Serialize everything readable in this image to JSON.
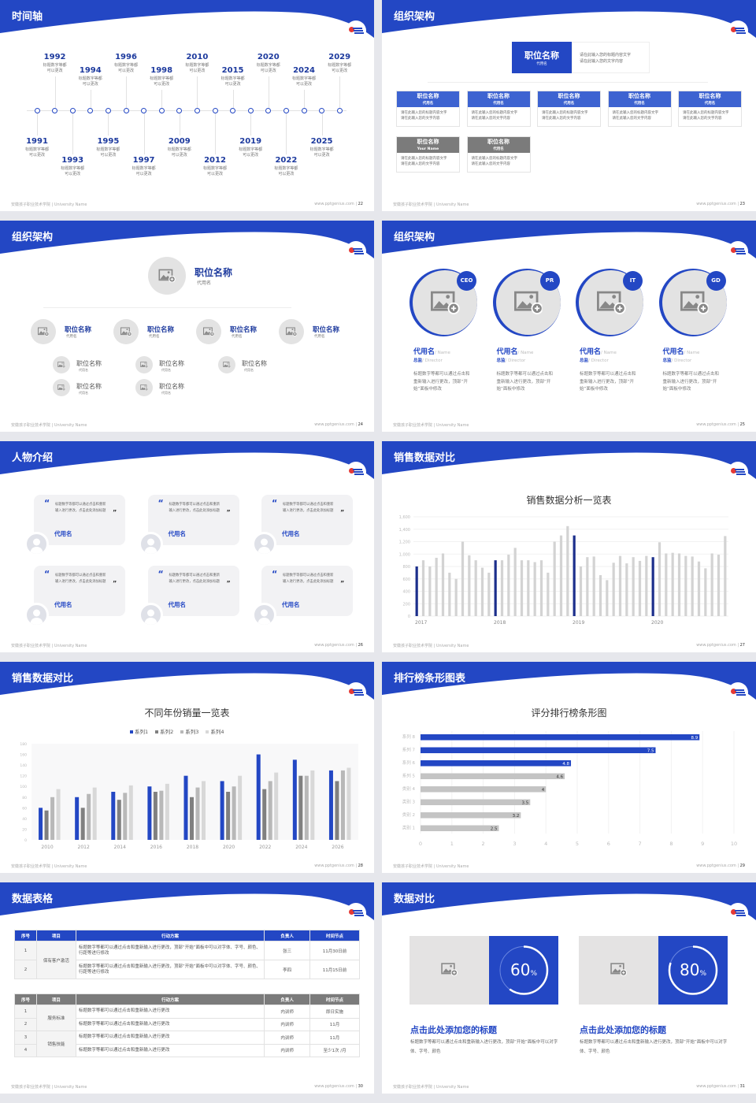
{
  "footer": {
    "school": "安徽孩子职业技术学院 | University Name",
    "site": "www.pptgenius.com"
  },
  "colors": {
    "accent": "#2347c4",
    "gray_header": "#7b7b7b",
    "bar_gray": "#cfcfcf"
  },
  "slides": [
    {
      "title": "时间轴",
      "page": "22",
      "timeline": [
        {
          "year": "1991",
          "text": [
            "标题数字等都",
            "可以更改"
          ]
        },
        {
          "year": "1992",
          "text": [
            "标题数字等都",
            "可以更改"
          ]
        },
        {
          "year": "1993",
          "text": [
            "标题数字等都",
            "可以更改"
          ]
        },
        {
          "year": "1994",
          "text": [
            "标题数字等都",
            "可以更改"
          ]
        },
        {
          "year": "1995",
          "text": [
            "标题数字等都",
            "可以更改"
          ]
        },
        {
          "year": "1996",
          "text": [
            "标题数字等都",
            "可以更改"
          ]
        },
        {
          "year": "1997",
          "text": [
            "标题数字等都",
            "可以更改"
          ]
        },
        {
          "year": "1998",
          "text": [
            "标题数字等都",
            "可以更改"
          ]
        },
        {
          "year": "2009",
          "text": [
            "标题数字等都",
            "可以更改"
          ]
        },
        {
          "year": "2010",
          "text": [
            "标题数字等都",
            "可以更改"
          ]
        },
        {
          "year": "2012",
          "text": [
            "标题数字等都",
            "可以更改"
          ]
        },
        {
          "year": "2015",
          "text": [
            "标题数字等都",
            "可以更改"
          ]
        },
        {
          "year": "2019",
          "text": [
            "标题数字等都",
            "可以更改"
          ]
        },
        {
          "year": "2020",
          "text": [
            "标题数字等都",
            "可以更改"
          ]
        },
        {
          "year": "2022",
          "text": [
            "标题数字等都",
            "可以更改"
          ]
        },
        {
          "year": "2024",
          "text": [
            "标题数字等都",
            "可以更改"
          ]
        },
        {
          "year": "2025",
          "text": [
            "标题数字等都",
            "可以更改"
          ]
        },
        {
          "year": "2029",
          "text": [
            "标题数字等都",
            "可以更改"
          ]
        }
      ]
    },
    {
      "title": "组织架构",
      "page": "23",
      "top": {
        "title": "职位名称",
        "sub": "代用名",
        "desc": [
          "请在此输入您的标题内容文字",
          "请在此输入您的文字内容"
        ]
      },
      "cards": [
        {
          "title": "职位名称",
          "sub": "代用名",
          "desc": [
            "请在此输入您的标题内容文字",
            "请在此输入您的文字内容"
          ],
          "color": "blue"
        },
        {
          "title": "职位名称",
          "sub": "代用名",
          "desc": [
            "请在此输入您的标题内容文字",
            "请在此输入您的文字内容"
          ],
          "color": "blue"
        },
        {
          "title": "职位名称",
          "sub": "代用名",
          "desc": [
            "请在此输入您的标题内容文字",
            "请在此输入您的文字内容"
          ],
          "color": "blue"
        },
        {
          "title": "职位名称",
          "sub": "代用名",
          "desc": [
            "请在此输入您的标题内容文字",
            "请在此输入您的文字内容"
          ],
          "color": "blue"
        },
        {
          "title": "职位名称",
          "sub": "代用名",
          "desc": [
            "请在此输入您的标题内容文字",
            "请在此输入您的文字内容"
          ],
          "color": "blue"
        },
        {
          "title": "职位名称",
          "sub": "Your Name",
          "desc": [
            "请在此输入您的标题内容文字",
            "请在此输入您的文字内容"
          ],
          "color": "gray"
        },
        {
          "title": "职位名称",
          "sub": "代用名",
          "desc": [
            "请在此输入您的标题内容文字",
            "请在此输入您的文字内容"
          ],
          "color": "gray"
        }
      ]
    },
    {
      "title": "组织架构",
      "page": "24",
      "top": {
        "title": "职位名称",
        "sub": "代用名"
      },
      "mid": [
        {
          "title": "职位名称",
          "sub": "代用名",
          "children": [
            {
              "title": "职位名称",
              "sub": "代用名"
            },
            {
              "title": "职位名称",
              "sub": "代用名"
            }
          ]
        },
        {
          "title": "职位名称",
          "sub": "代用名",
          "children": [
            {
              "title": "职位名称",
              "sub": "代用名"
            },
            {
              "title": "职位名称",
              "sub": "代用名"
            }
          ]
        },
        {
          "title": "职位名称",
          "sub": "代用名",
          "children": [
            {
              "title": "职位名称",
              "sub": "代用名"
            }
          ]
        },
        {
          "title": "职位名称",
          "sub": "代用名",
          "children": []
        }
      ]
    },
    {
      "title": "组织架构",
      "page": "25",
      "people": [
        {
          "badge": "CEO",
          "name": "代用名",
          "name_en": "/ Name",
          "role": "总监",
          "role_en": "/ Director",
          "desc": "标题数字等都可以通过点击和重新输入进行更改，顶部“开始”面板中修改"
        },
        {
          "badge": "PR",
          "name": "代用名",
          "name_en": "/ Name",
          "role": "总监",
          "role_en": "/ Director",
          "desc": "标题数字等都可以通过点击和重新输入进行更改，顶部“开始”面板中修改"
        },
        {
          "badge": "IT",
          "name": "代用名",
          "name_en": "/ Name",
          "role": "总监",
          "role_en": "/ Director",
          "desc": "标题数字等都可以通过点击和重新输入进行更改，顶部“开始”面板中修改"
        },
        {
          "badge": "GD",
          "name": "代用名",
          "name_en": "/ Name",
          "role": "总监",
          "role_en": "/ Director",
          "desc": "标题数字等都可以通过点击和重新输入进行更改，顶部“开始”面板中修改"
        }
      ]
    },
    {
      "title": "人物介绍",
      "page": "26",
      "quotes": [
        {
          "text": "标题数字等都可以通过点击和重新输入进行更改，点击此处添加标题",
          "name": "代用名"
        },
        {
          "text": "标题数字等都可以通过点击和重新输入进行更改，点击此处添加标题",
          "name": "代用名"
        },
        {
          "text": "标题数字等都可以通过点击和重新输入进行更改，点击此处添加标题",
          "name": "代用名"
        },
        {
          "text": "标题数字等都可以通过点击和重新输入进行更改，点击此处添加标题",
          "name": "代用名"
        },
        {
          "text": "标题数字等都可以通过点击和重新输入进行更改，点击此处添加标题",
          "name": "代用名"
        },
        {
          "text": "标题数字等都可以通过点击和重新输入进行更改，点击此处添加标题",
          "name": "代用名"
        }
      ]
    },
    {
      "title": "销售数据对比",
      "page": "27"
    },
    {
      "title": "销售数据对比",
      "page": "28"
    },
    {
      "title": "排行榜条形图表",
      "page": "29"
    },
    {
      "title": "数据表格",
      "page": "30",
      "table1": {
        "headers": [
          "序号",
          "项目",
          "行动方案",
          "负责人",
          "时间节点"
        ],
        "group": "保有客户激活",
        "rows": [
          [
            "1",
            "标题数字等都可以通过点击和重新输入进行更改，顶部“开始”面板中可以对字体、字号、颜色、行距等进行修改",
            "张三",
            "11月30日前"
          ],
          [
            "2",
            "标题数字等都可以通过点击和重新输入进行更改，顶部“开始”面板中可以对字体、字号、颜色、行距等进行修改",
            "李四",
            "11月15日前"
          ]
        ]
      },
      "table2": {
        "headers": [
          "序号",
          "项目",
          "行动方案",
          "负责人",
          "时间节点"
        ],
        "groups": [
          "服务标准",
          "销售技能"
        ],
        "rows": [
          [
            "1",
            "标题数字等都可以通过点击和重新输入进行更改",
            "内训师",
            "即日实施"
          ],
          [
            "2",
            "标题数字等都可以通过点击和重新输入进行更改",
            "内训师",
            "11月"
          ],
          [
            "3",
            "标题数字等都可以通过点击和重新输入进行更改",
            "内训师",
            "11月"
          ],
          [
            "4",
            "标题数字等都可以通过点击和重新输入进行更改",
            "内训师",
            "至少1次 /月"
          ]
        ]
      }
    },
    {
      "title": "数据对比",
      "page": "31",
      "panels": [
        {
          "percent": "60",
          "unit": "%",
          "value": 0.6,
          "title": "点击此处添加您的标题",
          "desc": "标题数字等都可以通过点击和重新输入进行更改，顶部“开始”面板中可以对字体、字号、颜色"
        },
        {
          "percent": "80",
          "unit": "%",
          "value": 0.8,
          "title": "点击此处添加您的标题",
          "desc": "标题数字等都可以通过点击和重新输入进行更改，顶部“开始”面板中可以对字体、字号、颜色"
        }
      ]
    }
  ],
  "chart_data": [
    {
      "type": "bar",
      "title": "销售数据分析一览表",
      "x_labels": [
        "2017",
        "2018",
        "2019",
        "2020"
      ],
      "ylim": [
        0,
        1600
      ],
      "yticks": [
        "0",
        "200",
        "400",
        "600",
        "800",
        "1,000",
        "1,200",
        "1,400",
        "1,600"
      ],
      "values": [
        800,
        900,
        800,
        940,
        1010,
        700,
        600,
        1200,
        980,
        900,
        780,
        700,
        900,
        900,
        990,
        1100,
        900,
        900,
        870,
        900,
        700,
        1200,
        1300,
        1450,
        1300,
        800,
        950,
        960,
        660,
        580,
        860,
        970,
        850,
        950,
        890,
        970,
        950,
        1190,
        1010,
        1020,
        1010,
        970,
        960,
        880,
        770,
        1010,
        990,
        1290
      ],
      "highlight_indices": [
        0,
        12,
        24,
        36
      ]
    },
    {
      "type": "bar",
      "title": "不同年份销量一览表",
      "categories": [
        "2010",
        "2012",
        "2014",
        "2016",
        "2018",
        "2020",
        "2022",
        "2024",
        "2026"
      ],
      "ylim": [
        0,
        180
      ],
      "yticks": [
        "0",
        "20",
        "40",
        "60",
        "80",
        "100",
        "120",
        "140",
        "160",
        "180"
      ],
      "legend": "top",
      "series": [
        {
          "name": "系列1",
          "color": "#2347c4",
          "values": [
            60,
            80,
            90,
            100,
            120,
            110,
            160,
            150,
            130
          ]
        },
        {
          "name": "系列2",
          "color": "#808080",
          "values": [
            55,
            60,
            75,
            90,
            80,
            90,
            95,
            120,
            110
          ]
        },
        {
          "name": "系列3",
          "color": "#b8b8b8",
          "values": [
            80,
            86,
            88,
            92,
            98,
            100,
            110,
            120,
            130
          ]
        },
        {
          "name": "系列4",
          "color": "#d8d8d8",
          "values": [
            95,
            98,
            102,
            105,
            110,
            120,
            126,
            130,
            135
          ]
        }
      ]
    },
    {
      "type": "bar",
      "orientation": "horizontal",
      "title": "评分排行榜条形图",
      "categories": [
        "系列 8",
        "系列 7",
        "系列 6",
        "系列 5",
        "类别 4",
        "类别 3",
        "类别 2",
        "类别 1"
      ],
      "values": [
        8.9,
        7.5,
        4.8,
        4.6,
        4,
        3.5,
        3.2,
        2.5
      ],
      "labels": [
        "8.9",
        "7.5",
        "4.8",
        "4.6",
        "4",
        "3.5",
        "3.2",
        "2.5"
      ],
      "xlim": [
        0,
        10
      ],
      "xticks": [
        "0",
        "1",
        "2",
        "3",
        "4",
        "5",
        "6",
        "7",
        "8",
        "9",
        "10"
      ],
      "highlight_count": 3
    }
  ]
}
